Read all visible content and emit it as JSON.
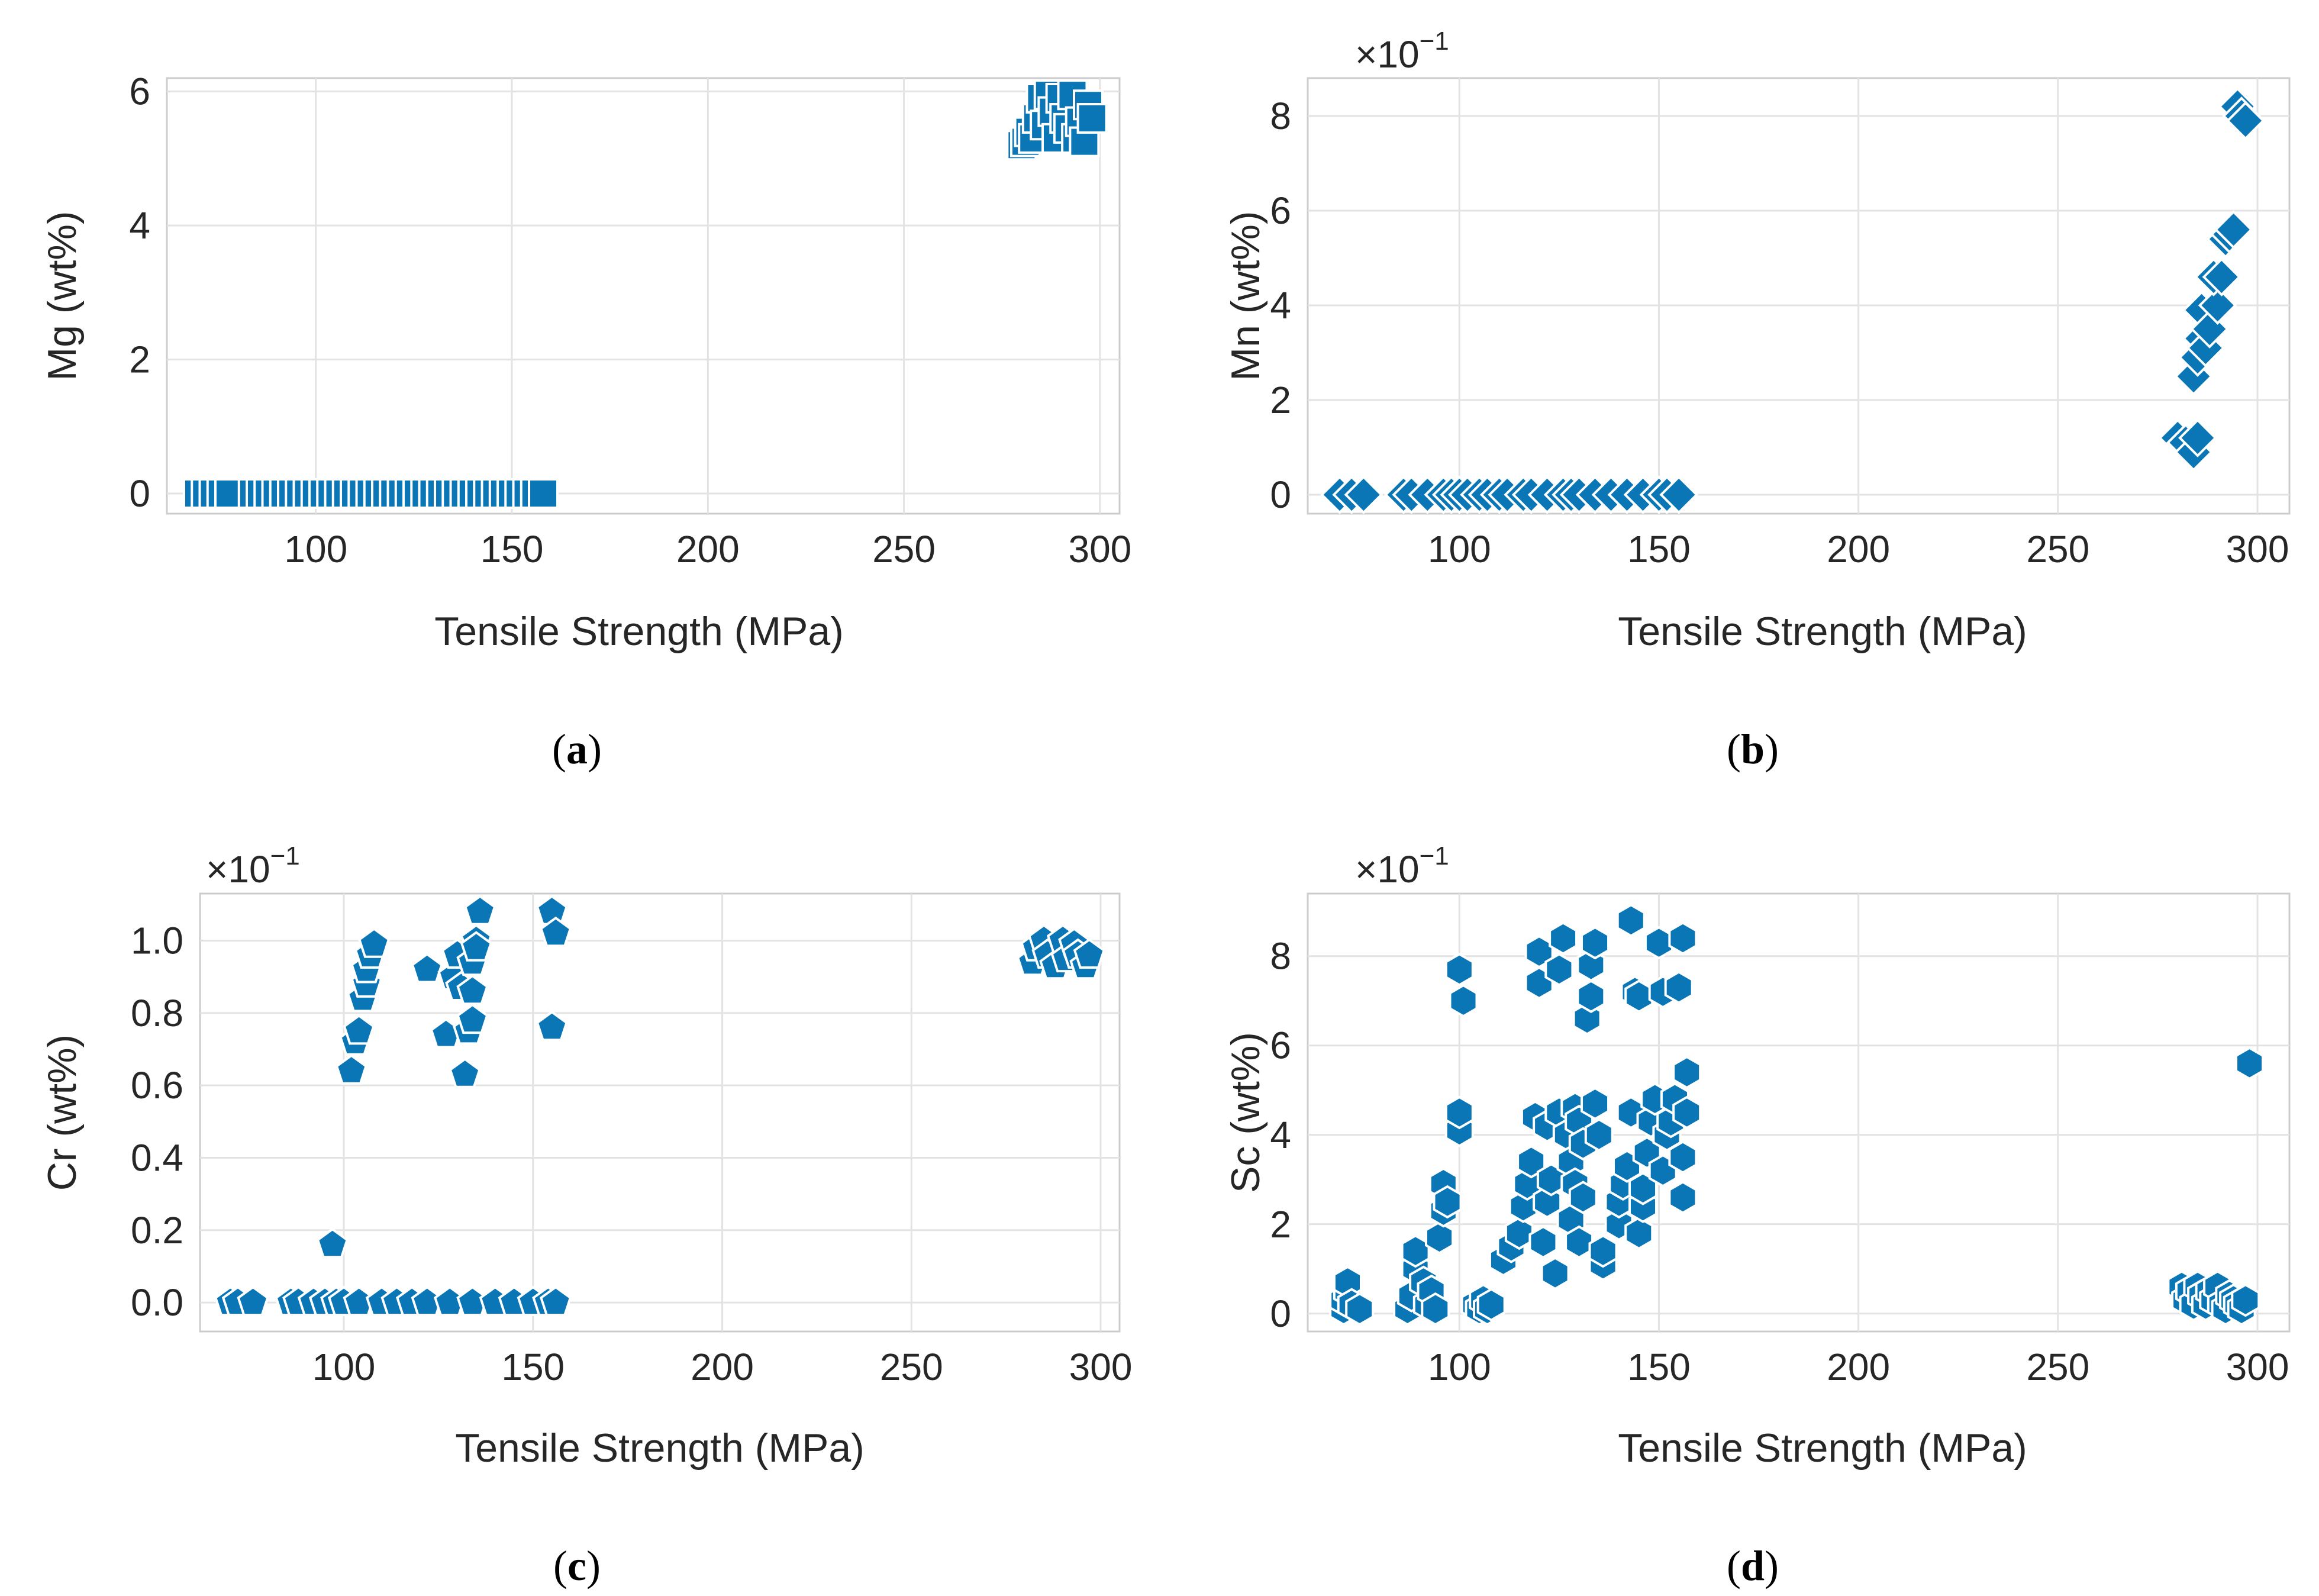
{
  "chart_data": [
    {
      "type": "scatter",
      "panel_label": "(a)",
      "panel_letter": "a",
      "title": "",
      "xlabel": "Tensile Strength (MPa)",
      "ylabel": "Mg (wt%)",
      "xlim": [
        62,
        305
      ],
      "ylim": [
        -0.3,
        6.2
      ],
      "xticks": [
        100,
        150,
        200,
        250,
        300
      ],
      "yticks": [
        0,
        2,
        4,
        6
      ],
      "ytick_labels": [
        "0",
        "2",
        "4",
        "6"
      ],
      "multiplier": "",
      "marker": "square",
      "grid": true,
      "color": "#0a76b5",
      "points": [
        [
          70,
          0
        ],
        [
          72,
          0
        ],
        [
          74,
          0
        ],
        [
          76,
          0
        ],
        [
          78,
          0
        ],
        [
          84,
          0
        ],
        [
          86,
          0
        ],
        [
          88,
          0
        ],
        [
          90,
          0
        ],
        [
          92,
          0
        ],
        [
          94,
          0
        ],
        [
          96,
          0
        ],
        [
          98,
          0
        ],
        [
          100,
          0
        ],
        [
          102,
          0
        ],
        [
          104,
          0
        ],
        [
          106,
          0
        ],
        [
          108,
          0
        ],
        [
          110,
          0
        ],
        [
          112,
          0
        ],
        [
          114,
          0
        ],
        [
          116,
          0
        ],
        [
          118,
          0
        ],
        [
          120,
          0
        ],
        [
          122,
          0
        ],
        [
          124,
          0
        ],
        [
          126,
          0
        ],
        [
          128,
          0
        ],
        [
          130,
          0
        ],
        [
          132,
          0
        ],
        [
          134,
          0
        ],
        [
          136,
          0
        ],
        [
          138,
          0
        ],
        [
          140,
          0
        ],
        [
          142,
          0
        ],
        [
          144,
          0
        ],
        [
          146,
          0
        ],
        [
          148,
          0
        ],
        [
          150,
          0
        ],
        [
          152,
          0
        ],
        [
          154,
          0
        ],
        [
          156,
          0
        ],
        [
          158,
          0
        ],
        [
          280,
          5.2
        ],
        [
          281,
          5.25
        ],
        [
          282,
          5.4
        ],
        [
          283,
          5.3
        ],
        [
          284,
          5.6
        ],
        [
          285,
          5.9
        ],
        [
          286,
          5.5
        ],
        [
          287,
          5.95
        ],
        [
          288,
          5.7
        ],
        [
          289,
          5.3
        ],
        [
          290,
          5.9
        ],
        [
          291,
          5.6
        ],
        [
          292,
          5.45
        ],
        [
          293,
          5.95
        ],
        [
          294,
          5.3
        ],
        [
          295,
          5.55
        ],
        [
          296,
          5.25
        ],
        [
          297,
          5.8
        ],
        [
          298,
          5.6
        ]
      ]
    },
    {
      "type": "scatter",
      "panel_label": "(b)",
      "panel_letter": "b",
      "title": "",
      "xlabel": "Tensile Strength (MPa)",
      "ylabel": "Mn (wt%)",
      "xlim": [
        62,
        308
      ],
      "ylim": [
        -0.4,
        8.8
      ],
      "xticks": [
        100,
        150,
        200,
        250,
        300
      ],
      "yticks": [
        0,
        2,
        4,
        6,
        8
      ],
      "ytick_labels": [
        "0",
        "2",
        "4",
        "6",
        "8"
      ],
      "multiplier": "×10",
      "multiplier_exponent": "−1",
      "marker": "diamond",
      "grid": true,
      "color": "#0a76b5",
      "points": [
        [
          70,
          0
        ],
        [
          73,
          0
        ],
        [
          76,
          0
        ],
        [
          86,
          0
        ],
        [
          88,
          0
        ],
        [
          92,
          0
        ],
        [
          96,
          0
        ],
        [
          98,
          0
        ],
        [
          100,
          0
        ],
        [
          102,
          0
        ],
        [
          105,
          0
        ],
        [
          107,
          0
        ],
        [
          110,
          0
        ],
        [
          112,
          0
        ],
        [
          116,
          0
        ],
        [
          118,
          0
        ],
        [
          122,
          0
        ],
        [
          126,
          0
        ],
        [
          128,
          0
        ],
        [
          130,
          0
        ],
        [
          134,
          0
        ],
        [
          138,
          0
        ],
        [
          142,
          0
        ],
        [
          146,
          0
        ],
        [
          150,
          0
        ],
        [
          152,
          0
        ],
        [
          155,
          0
        ],
        [
          280,
          1.2
        ],
        [
          282,
          1.1
        ],
        [
          284,
          0.9
        ],
        [
          285,
          1.2
        ],
        [
          284,
          2.5
        ],
        [
          285,
          2.9
        ],
        [
          286,
          3.3
        ],
        [
          287,
          3.1
        ],
        [
          286,
          3.9
        ],
        [
          288,
          3.5
        ],
        [
          290,
          4.0
        ],
        [
          289,
          4.6
        ],
        [
          291,
          4.6
        ],
        [
          292,
          5.4
        ],
        [
          293,
          5.5
        ],
        [
          294,
          5.6
        ],
        [
          295,
          8.2
        ],
        [
          296,
          8.0
        ],
        [
          297,
          7.9
        ]
      ]
    },
    {
      "type": "scatter",
      "panel_label": "(c)",
      "panel_letter": "c",
      "title": "",
      "xlabel": "Tensile Strength (MPa)",
      "ylabel": "Cr (wt%)",
      "xlim": [
        62,
        305
      ],
      "ylim": [
        -0.08,
        1.13
      ],
      "xticks": [
        100,
        150,
        200,
        250,
        300
      ],
      "yticks": [
        0.0,
        0.2,
        0.4,
        0.6,
        0.8,
        1.0
      ],
      "ytick_labels": [
        "0.0",
        "0.2",
        "0.4",
        "0.6",
        "0.8",
        "1.0"
      ],
      "multiplier": "×10",
      "multiplier_exponent": "−1",
      "marker": "pentagon",
      "grid": true,
      "color": "#0a76b5",
      "points": [
        [
          70,
          0
        ],
        [
          72,
          0
        ],
        [
          76,
          0
        ],
        [
          86,
          0
        ],
        [
          88,
          0
        ],
        [
          92,
          0
        ],
        [
          95,
          0
        ],
        [
          98,
          0
        ],
        [
          100,
          0
        ],
        [
          104,
          0
        ],
        [
          110,
          0
        ],
        [
          114,
          0
        ],
        [
          118,
          0
        ],
        [
          122,
          0
        ],
        [
          128,
          0
        ],
        [
          134,
          0
        ],
        [
          140,
          0
        ],
        [
          145,
          0
        ],
        [
          150,
          0
        ],
        [
          154,
          0
        ],
        [
          156,
          0
        ],
        [
          97,
          0.16
        ],
        [
          102,
          0.64
        ],
        [
          103,
          0.72
        ],
        [
          104,
          0.75
        ],
        [
          105,
          0.84
        ],
        [
          106,
          0.88
        ],
        [
          106,
          0.92
        ],
        [
          107,
          0.96
        ],
        [
          108,
          0.99
        ],
        [
          122,
          0.92
        ],
        [
          127,
          0.74
        ],
        [
          129,
          0.9
        ],
        [
          130,
          0.96
        ],
        [
          131,
          0.87
        ],
        [
          132,
          0.63
        ],
        [
          133,
          0.75
        ],
        [
          134,
          0.78
        ],
        [
          134,
          0.86
        ],
        [
          134,
          0.94
        ],
        [
          135,
          1.0
        ],
        [
          136,
          1.08
        ],
        [
          135,
          0.98
        ],
        [
          155,
          0.76
        ],
        [
          155,
          1.08
        ],
        [
          156,
          1.02
        ],
        [
          282,
          0.94
        ],
        [
          283,
          0.98
        ],
        [
          285,
          1.0
        ],
        [
          286,
          0.96
        ],
        [
          288,
          0.93
        ],
        [
          290,
          1.0
        ],
        [
          291,
          0.95
        ],
        [
          293,
          0.99
        ],
        [
          294,
          0.96
        ],
        [
          296,
          0.93
        ],
        [
          297,
          0.96
        ]
      ]
    },
    {
      "type": "scatter",
      "panel_label": "(d)",
      "panel_letter": "d",
      "title": "",
      "xlabel": "Tensile Strength (MPa)",
      "ylabel": "Sc (wt%)",
      "xlim": [
        62,
        308
      ],
      "ylim": [
        -0.4,
        9.4
      ],
      "xticks": [
        100,
        150,
        200,
        250,
        300
      ],
      "yticks": [
        0,
        2,
        4,
        6,
        8
      ],
      "ytick_labels": [
        "0",
        "2",
        "4",
        "6",
        "8"
      ],
      "multiplier": "×10",
      "multiplier_exponent": "−1",
      "marker": "hexagon",
      "grid": true,
      "color": "#0a76b5",
      "points": [
        [
          71,
          0.1
        ],
        [
          71,
          0.3
        ],
        [
          72,
          0.5
        ],
        [
          72,
          0.7
        ],
        [
          73,
          0.2
        ],
        [
          75,
          0.1
        ],
        [
          87,
          0.1
        ],
        [
          88,
          0.4
        ],
        [
          89,
          1.0
        ],
        [
          89,
          1.4
        ],
        [
          91,
          0.7
        ],
        [
          92,
          0.2
        ],
        [
          93,
          0.5
        ],
        [
          94,
          0.1
        ],
        [
          95,
          1.7
        ],
        [
          96,
          2.3
        ],
        [
          96,
          2.9
        ],
        [
          97,
          2.5
        ],
        [
          100,
          4.1
        ],
        [
          100,
          4.5
        ],
        [
          100,
          7.7
        ],
        [
          101,
          7.0
        ],
        [
          104,
          0.2
        ],
        [
          105,
          0.1
        ],
        [
          106,
          0.3
        ],
        [
          107,
          0.1
        ],
        [
          108,
          0.2
        ],
        [
          111,
          1.2
        ],
        [
          113,
          1.5
        ],
        [
          115,
          1.8
        ],
        [
          116,
          2.4
        ],
        [
          117,
          2.9
        ],
        [
          118,
          3.4
        ],
        [
          119,
          4.4
        ],
        [
          120,
          7.4
        ],
        [
          120,
          8.1
        ],
        [
          121,
          1.6
        ],
        [
          122,
          2.5
        ],
        [
          122,
          4.2
        ],
        [
          123,
          3.0
        ],
        [
          124,
          0.9
        ],
        [
          125,
          4.5
        ],
        [
          125,
          7.7
        ],
        [
          126,
          8.4
        ],
        [
          127,
          4.0
        ],
        [
          128,
          2.1
        ],
        [
          128,
          3.4
        ],
        [
          129,
          2.9
        ],
        [
          129,
          4.6
        ],
        [
          130,
          1.6
        ],
        [
          130,
          4.3
        ],
        [
          131,
          2.6
        ],
        [
          131,
          3.8
        ],
        [
          132,
          6.6
        ],
        [
          133,
          7.1
        ],
        [
          133,
          7.8
        ],
        [
          134,
          8.3
        ],
        [
          134,
          4.7
        ],
        [
          135,
          4.0
        ],
        [
          136,
          1.1
        ],
        [
          136,
          1.4
        ],
        [
          140,
          2.0
        ],
        [
          140,
          2.5
        ],
        [
          141,
          2.9
        ],
        [
          142,
          3.3
        ],
        [
          143,
          4.5
        ],
        [
          143,
          8.8
        ],
        [
          144,
          7.2
        ],
        [
          145,
          7.1
        ],
        [
          145,
          1.8
        ],
        [
          146,
          2.4
        ],
        [
          146,
          2.8
        ],
        [
          147,
          3.6
        ],
        [
          148,
          4.3
        ],
        [
          149,
          4.8
        ],
        [
          150,
          8.3
        ],
        [
          151,
          7.2
        ],
        [
          151,
          3.2
        ],
        [
          152,
          4.0
        ],
        [
          153,
          4.3
        ],
        [
          154,
          4.8
        ],
        [
          155,
          7.3
        ],
        [
          156,
          8.4
        ],
        [
          156,
          2.6
        ],
        [
          156,
          3.5
        ],
        [
          157,
          4.5
        ],
        [
          157,
          5.4
        ],
        [
          281,
          0.6
        ],
        [
          282,
          0.3
        ],
        [
          283,
          0.5
        ],
        [
          284,
          0.2
        ],
        [
          285,
          0.6
        ],
        [
          286,
          0.4
        ],
        [
          287,
          0.2
        ],
        [
          288,
          0.5
        ],
        [
          289,
          0.3
        ],
        [
          290,
          0.6
        ],
        [
          291,
          0.2
        ],
        [
          292,
          0.1
        ],
        [
          293,
          0.4
        ],
        [
          294,
          0.3
        ],
        [
          295,
          0.2
        ],
        [
          296,
          0.1
        ],
        [
          297,
          0.3
        ],
        [
          298,
          5.6
        ]
      ]
    }
  ]
}
